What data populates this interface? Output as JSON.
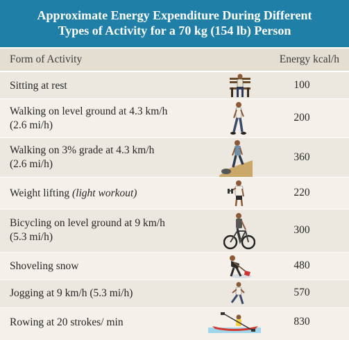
{
  "title": {
    "line1": "Approximate Energy Expenditure During Different",
    "line2": "Types of Activity for a 70 kg (154 lb) Person"
  },
  "columns": {
    "activity": "Form of Activity",
    "energy": "Energy kcal/h"
  },
  "rows": [
    {
      "line1": "Sitting at rest",
      "line2": "",
      "value": "100",
      "icon": "person-sitting-on-bench-icon"
    },
    {
      "line1": "Walking on level ground at 4.3 km/h",
      "line2": "(2.6 mi/h)",
      "value": "200",
      "icon": "person-walking-icon"
    },
    {
      "line1": "Walking on 3% grade at 4.3 km/h",
      "line2": "(2.6 mi/h)",
      "value": "360",
      "icon": "person-walking-uphill-icon"
    },
    {
      "line1": "Weight lifting ",
      "line1_italic": "(light workout)",
      "line2": "",
      "value": "220",
      "icon": "person-lifting-weights-icon"
    },
    {
      "line1": "Bicycling on level ground at 9 km/h",
      "line2": "(5.3 mi/h)",
      "value": "300",
      "icon": "person-bicycling-icon"
    },
    {
      "line1": "Shoveling snow",
      "line2": "",
      "value": "480",
      "icon": "person-shoveling-snow-icon"
    },
    {
      "line1": "Jogging at 9 km/h (5.3 mi/h)",
      "line2": "",
      "value": "570",
      "icon": "person-jogging-icon"
    },
    {
      "line1": "Rowing at 20 strokes/ min",
      "line2": "",
      "value": "830",
      "icon": "person-rowing-kayak-icon"
    }
  ]
}
